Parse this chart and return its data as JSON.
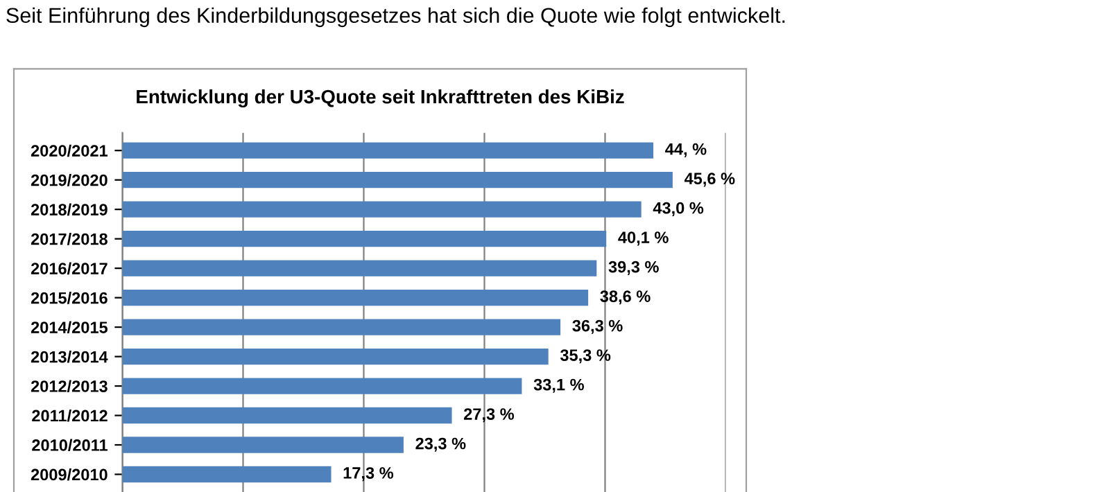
{
  "chart_data": {
    "type": "bar",
    "orientation": "horizontal",
    "subtitle": "Seit Einführung des Kinderbildungsgesetzes hat sich die Quote wie folgt entwickelt.",
    "title": "Entwicklung der U3-Quote seit Inkrafttreten des KiBiz",
    "categories": [
      "2020/2021",
      "2019/2020",
      "2018/2019",
      "2017/2018",
      "2016/2017",
      "2015/2016",
      "2014/2015",
      "2013/2014",
      "2012/2013",
      "2011/2012",
      "2010/2011",
      "2009/2010"
    ],
    "values": [
      44.0,
      45.6,
      43.0,
      40.1,
      39.3,
      38.6,
      36.3,
      35.3,
      33.1,
      27.3,
      23.3,
      17.3
    ],
    "value_labels": [
      "44, %",
      "45,6 %",
      "43,0 %",
      "40,1 %",
      "39,3 %",
      "38,6 %",
      "36,3 %",
      "35,3 %",
      "33,1 %",
      "27,3 %",
      "23,3 %",
      "17,3 %"
    ],
    "color": "#4f81bd",
    "xlim": [
      0,
      50
    ],
    "xticks": [
      {
        "value": 0,
        "label": null
      },
      {
        "value": 10,
        "label": null
      },
      {
        "value": 20,
        "label": null
      },
      {
        "value": 30,
        "label": null
      },
      {
        "value": 40,
        "label": null
      },
      {
        "value": 50,
        "label": null
      }
    ],
    "tick_labels": "y",
    "grid": "x"
  }
}
